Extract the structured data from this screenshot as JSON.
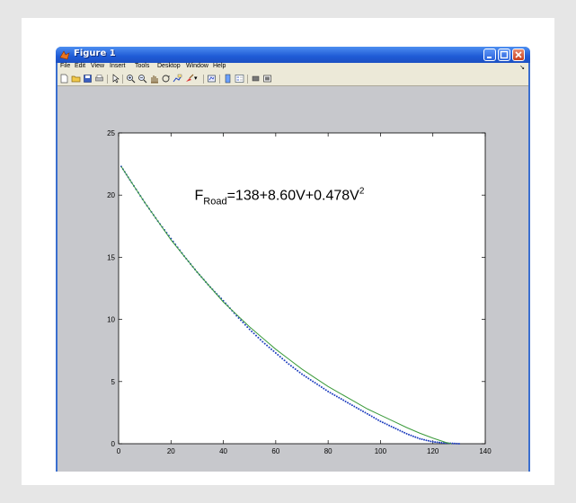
{
  "window": {
    "title": "Figure 1",
    "accent": "#2a63dc"
  },
  "menu": {
    "items": [
      "File",
      "Edit",
      "View",
      "Insert",
      "Tools",
      "Desktop",
      "Window",
      "Help"
    ]
  },
  "toolbar": {
    "icons": [
      "new-file-icon",
      "open-folder-icon",
      "save-icon",
      "print-icon",
      "pointer-icon",
      "zoom-in-icon",
      "zoom-out-icon",
      "pan-hand-icon",
      "rotate-3d-icon",
      "data-cursor-icon",
      "brush-icon",
      "link-plot-icon",
      "colorbar-icon",
      "legend-icon",
      "hide-plot-tools-icon",
      "show-plot-tools-icon"
    ]
  },
  "chart_data": {
    "type": "line",
    "title": "",
    "xlabel": "",
    "ylabel": "",
    "xlim": [
      0,
      140
    ],
    "ylim": [
      0,
      25
    ],
    "xticks": [
      0,
      20,
      40,
      60,
      80,
      100,
      120,
      140
    ],
    "yticks": [
      0,
      5,
      10,
      15,
      20,
      25
    ],
    "grid": false,
    "annotation": {
      "prefix": "F",
      "subscript": "Road",
      "body": "=138+8.60V+0.478V",
      "superscript": "2"
    },
    "series": [
      {
        "style": "dotted",
        "color": "#1f3fbf",
        "x": [
          1,
          5,
          10,
          15,
          20,
          25,
          30,
          35,
          40,
          45,
          50,
          55,
          60,
          65,
          70,
          75,
          80,
          85,
          90,
          95,
          100,
          105,
          110,
          115,
          120,
          125,
          130
        ],
        "y": [
          22.3,
          21.0,
          19.4,
          17.9,
          16.5,
          15.1,
          13.8,
          12.6,
          11.5,
          10.3,
          9.2,
          8.2,
          7.3,
          6.4,
          5.6,
          4.9,
          4.2,
          3.6,
          3.0,
          2.4,
          1.8,
          1.3,
          0.8,
          0.4,
          0.15,
          0.05,
          0.0
        ]
      },
      {
        "style": "solid",
        "color": "#3a9a3a",
        "x": [
          1,
          5,
          10,
          15,
          20,
          25,
          30,
          35,
          40,
          45,
          50,
          55,
          60,
          65,
          70,
          75,
          80,
          85,
          90,
          95,
          100,
          105,
          110,
          115,
          120,
          125,
          127
        ],
        "y": [
          22.3,
          21.0,
          19.4,
          17.9,
          16.4,
          15.1,
          13.8,
          12.6,
          11.4,
          10.4,
          9.4,
          8.5,
          7.6,
          6.8,
          6.0,
          5.3,
          4.6,
          4.0,
          3.4,
          2.8,
          2.3,
          1.8,
          1.3,
          0.85,
          0.45,
          0.1,
          0.0
        ]
      }
    ]
  }
}
